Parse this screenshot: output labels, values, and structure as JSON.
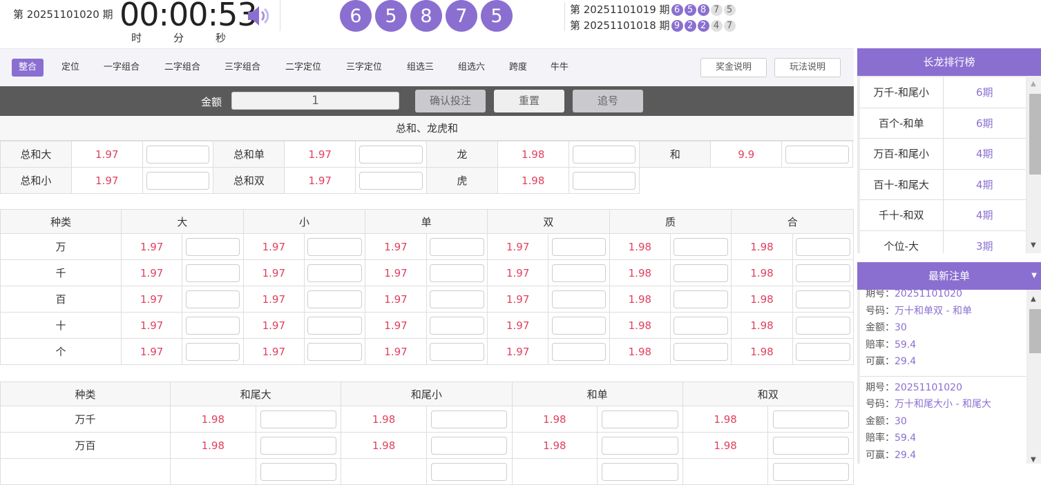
{
  "header": {
    "issue": "第 20251101020 期",
    "timer": "00:00:53",
    "units": [
      "时",
      "分",
      "秒"
    ],
    "balls": [
      "6",
      "5",
      "8",
      "7",
      "5"
    ],
    "history": [
      {
        "issue": "第 20251101019 期",
        "balls": [
          "6",
          "5",
          "8",
          "7",
          "5"
        ],
        "highlight": 3
      },
      {
        "issue": "第 20251101018 期",
        "balls": [
          "9",
          "2",
          "2",
          "4",
          "7"
        ],
        "highlight": 3
      }
    ]
  },
  "tabs": [
    "整合",
    "定位",
    "一字组合",
    "二字组合",
    "三字组合",
    "二字定位",
    "三字定位",
    "组选三",
    "组选六",
    "跨度",
    "牛牛"
  ],
  "active_tab": "整合",
  "help_buttons": [
    "奖金说明",
    "玩法说明"
  ],
  "amount": {
    "label": "金额",
    "value": "1",
    "buttons": [
      "确认投注",
      "重置",
      "追号"
    ]
  },
  "section1": {
    "title": "总和、龙虎和",
    "rows": [
      [
        [
          "总和大",
          "1.97"
        ],
        [
          "总和单",
          "1.97"
        ],
        [
          "龙",
          "1.98"
        ],
        [
          "和",
          "9.9"
        ]
      ],
      [
        [
          "总和小",
          "1.97"
        ],
        [
          "总和双",
          "1.97"
        ],
        [
          "虎",
          "1.98"
        ]
      ]
    ]
  },
  "table2": {
    "headers": [
      "种类",
      "大",
      "小",
      "单",
      "双",
      "质",
      "合"
    ],
    "rows": [
      {
        "label": "万",
        "odds": [
          "1.97",
          "1.97",
          "1.97",
          "1.97",
          "1.98",
          "1.98"
        ]
      },
      {
        "label": "千",
        "odds": [
          "1.97",
          "1.97",
          "1.97",
          "1.97",
          "1.98",
          "1.98"
        ]
      },
      {
        "label": "百",
        "odds": [
          "1.97",
          "1.97",
          "1.97",
          "1.97",
          "1.98",
          "1.98"
        ]
      },
      {
        "label": "十",
        "odds": [
          "1.97",
          "1.97",
          "1.97",
          "1.97",
          "1.98",
          "1.98"
        ]
      },
      {
        "label": "个",
        "odds": [
          "1.97",
          "1.97",
          "1.97",
          "1.97",
          "1.98",
          "1.98"
        ]
      }
    ]
  },
  "table3": {
    "headers": [
      "种类",
      "和尾大",
      "和尾小",
      "和单",
      "和双"
    ],
    "rows": [
      {
        "label": "万千",
        "odds": [
          "1.98",
          "1.98",
          "1.98",
          "1.98"
        ]
      },
      {
        "label": "万百",
        "odds": [
          "1.98",
          "1.98",
          "1.98",
          "1.98"
        ]
      }
    ]
  },
  "ranking": {
    "title": "长龙排行榜",
    "items": [
      [
        "万千-和尾小",
        "6期"
      ],
      [
        "百个-和单",
        "6期"
      ],
      [
        "万百-和尾小",
        "4期"
      ],
      [
        "百十-和尾大",
        "4期"
      ],
      [
        "千十-和双",
        "4期"
      ],
      [
        "个位-大",
        "3期"
      ]
    ]
  },
  "bets": {
    "title": "最新注单",
    "labels": [
      "期号：",
      "号码：",
      "金额：",
      "赔率：",
      "可赢："
    ],
    "items": [
      [
        "20251101020",
        "万十和单双 - 和单",
        "30",
        "59.4",
        "29.4"
      ],
      [
        "20251101020",
        "万十和尾大小 - 和尾大",
        "30",
        "59.4",
        "29.4"
      ]
    ]
  },
  "colors": {
    "accent": "#8a6fd1",
    "odds": "#e0405e",
    "bar": "#5a5a5a"
  }
}
